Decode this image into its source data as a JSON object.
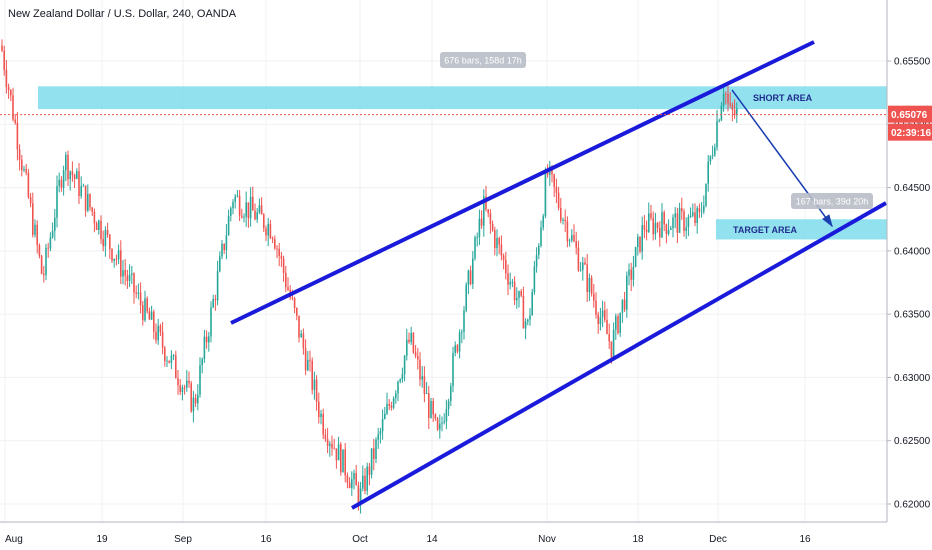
{
  "header": {
    "title": "New Zealand Dollar / U.S. Dollar, 240, OANDA"
  },
  "chart_data": {
    "type": "candlestick",
    "symbol": "NZDUSD",
    "timeframe": "240",
    "source": "OANDA",
    "y_ticks": [
      "0.65500",
      "0.65000",
      "0.64500",
      "0.64000",
      "0.63500",
      "0.63000",
      "0.62500",
      "0.62000"
    ],
    "y_tick_values": [
      0.655,
      0.65,
      0.645,
      0.64,
      0.635,
      0.63,
      0.625,
      0.62
    ],
    "ylim": [
      0.6185,
      0.6595
    ],
    "x_ticks": [
      "Aug",
      "19",
      "Sep",
      "16",
      "Oct",
      "14",
      "Nov",
      "18",
      "Dec",
      "16"
    ],
    "current_price": "0.65076",
    "countdown": "02:39:16",
    "colors": {
      "up": "#26a69a",
      "down": "#ef5350",
      "channel": "#1a1adb",
      "zone": "#7fdcec",
      "arrow": "#1a3fb0",
      "price_tag": "#ef5350"
    },
    "zones": [
      {
        "label": "SHORT AREA",
        "from": 0.6512,
        "to": 0.653
      },
      {
        "label": "TARGET AREA",
        "from": 0.6409,
        "to": 0.6425
      }
    ],
    "measures": [
      {
        "label": "676 bars, 158d 17h"
      },
      {
        "label": "167 bars, 39d 20h"
      }
    ],
    "key_points": [
      {
        "date": "Aug 1",
        "price": 0.6545
      },
      {
        "date": "Aug 8",
        "price": 0.6378
      },
      {
        "date": "Aug 12",
        "price": 0.6473
      },
      {
        "date": "Sep 3",
        "price": 0.6278
      },
      {
        "date": "Sep 10",
        "price": 0.6443
      },
      {
        "date": "Sep 17",
        "price": 0.6418
      },
      {
        "date": "Sep 25",
        "price": 0.6265
      },
      {
        "date": "Oct 1",
        "price": 0.6205
      },
      {
        "date": "Oct 10",
        "price": 0.633
      },
      {
        "date": "Oct 15",
        "price": 0.625
      },
      {
        "date": "Oct 22",
        "price": 0.6435
      },
      {
        "date": "Oct 29",
        "price": 0.634
      },
      {
        "date": "Nov 1",
        "price": 0.6462
      },
      {
        "date": "Nov 13",
        "price": 0.6325
      },
      {
        "date": "Nov 19",
        "price": 0.642
      },
      {
        "date": "Nov 28",
        "price": 0.6425
      },
      {
        "date": "Dec 2",
        "price": 0.6532
      },
      {
        "date": "Dec 3",
        "price": 0.6508
      }
    ]
  }
}
